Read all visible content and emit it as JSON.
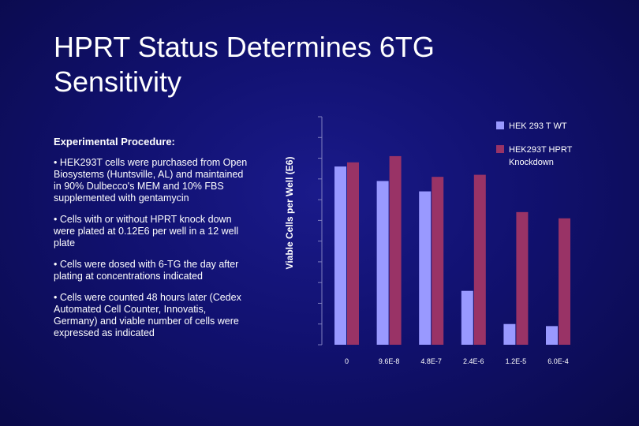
{
  "slide": {
    "title_lines": [
      "HPRT Status Determines 6TG",
      "Sensitivity"
    ]
  },
  "procedure": {
    "heading": "Experimental Procedure:",
    "items": [
      "• HEK293T cells were purchased from Open Biosystems (Huntsville, AL) and maintained in 90% Dulbecco's MEM and 10% FBS supplemented with gentamycin",
      "• Cells with or without HPRT knock down were plated at 0.12E6 per well in a 12 well plate",
      "• Cells were dosed with 6-TG the day after plating at concentrations indicated",
      "• Cells were counted 48 hours later (Cedex Automated Cell Counter, Innovatis, Germany) and viable number of cells were expressed as indicated"
    ]
  },
  "chart_data": {
    "type": "bar",
    "title": "",
    "xlabel": "",
    "ylabel": "Viable Cells per Well (E6)",
    "categories": [
      "0",
      "9.6E-8",
      "4.8E-7",
      "2.4E-6",
      "1.2E-5",
      "6.0E-4"
    ],
    "series": [
      {
        "name": "HEK 293 T WT",
        "color": "#9999ff",
        "values": [
          0.86,
          0.79,
          0.74,
          0.26,
          0.1,
          0.09
        ]
      },
      {
        "name": "HEK293T HPRT Knockdown",
        "legend_lines": [
          "HEK293T HPRT",
          "Knockdown"
        ],
        "color": "#993366",
        "values": [
          0.88,
          0.91,
          0.81,
          0.82,
          0.64,
          0.61
        ]
      }
    ],
    "ylim": [
      0,
      1.1
    ],
    "legend_position": "top-right",
    "grid": false
  }
}
